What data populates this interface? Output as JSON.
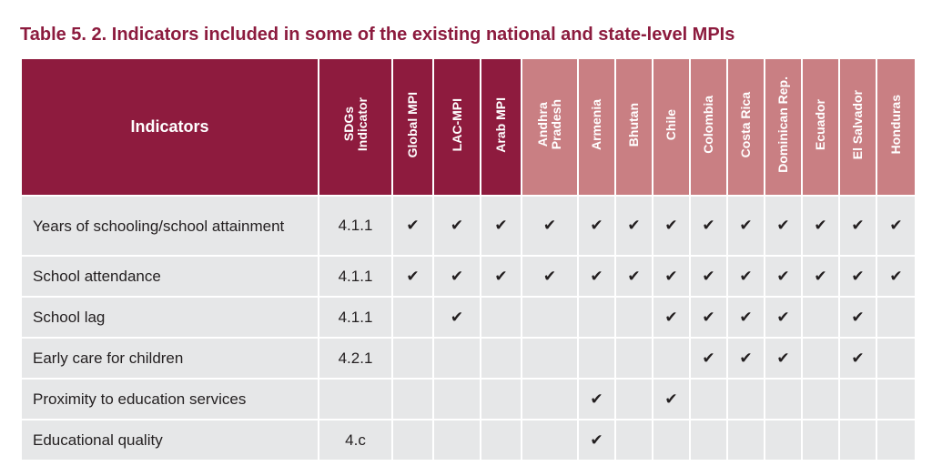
{
  "title": "Table 5. 2. Indicators included in some of the existing national and state-level MPIs",
  "columns": {
    "indicators": "Indicators",
    "sdg": "SDGs\nIndicator",
    "regional": [
      "Global MPI",
      "LAC-MPI",
      "Arab MPI"
    ],
    "countries": [
      "Andhra\nPradesh",
      "Armenia",
      "Bhutan",
      "Chile",
      "Colombia",
      "Costa Rica",
      "Dominican Rep.",
      "Ecuador",
      "El Salvador",
      "Honduras"
    ]
  },
  "check_symbol": "✔",
  "rows": [
    {
      "label": "Years of schooling/school attainment",
      "sdg": "4.1.1",
      "checks": [
        1,
        1,
        1,
        1,
        1,
        1,
        1,
        1,
        1,
        1,
        1,
        1,
        1
      ]
    },
    {
      "label": "School attendance",
      "sdg": "4.1.1",
      "checks": [
        1,
        1,
        1,
        1,
        1,
        1,
        1,
        1,
        1,
        1,
        1,
        1,
        1
      ]
    },
    {
      "label": "School lag",
      "sdg": "4.1.1",
      "checks": [
        0,
        1,
        0,
        0,
        0,
        0,
        1,
        1,
        1,
        1,
        0,
        1,
        0
      ]
    },
    {
      "label": "Early care for children",
      "sdg": "4.2.1",
      "checks": [
        0,
        0,
        0,
        0,
        0,
        0,
        0,
        1,
        1,
        1,
        0,
        1,
        0
      ]
    },
    {
      "label": "Proximity to education services",
      "sdg": "",
      "checks": [
        0,
        0,
        0,
        0,
        1,
        0,
        1,
        0,
        0,
        0,
        0,
        0,
        0
      ]
    },
    {
      "label": "Educational quality",
      "sdg": "4.c",
      "checks": [
        0,
        0,
        0,
        0,
        1,
        0,
        0,
        0,
        0,
        0,
        0,
        0,
        0
      ]
    }
  ],
  "colors": {
    "title": "#8c1b3e",
    "header_dark": "#8e1b3e",
    "header_light": "#c97f83",
    "cell_bg": "#e6e7e8"
  }
}
